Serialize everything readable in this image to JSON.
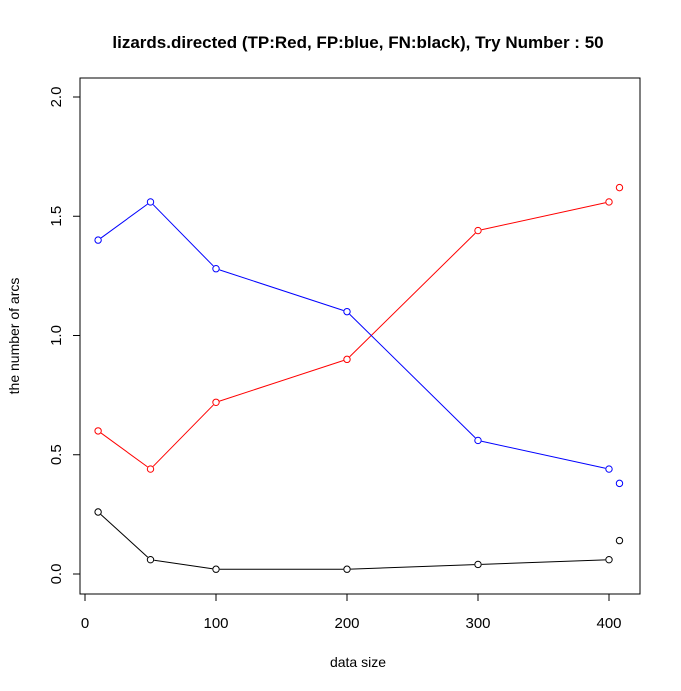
{
  "chart_data": {
    "type": "line",
    "title": "lizards.directed  (TP:Red, FP:blue, FN:black),  Try Number :  50",
    "xlabel": "data size",
    "ylabel": "the number of arcs",
    "xlim": [
      0,
      410
    ],
    "ylim": [
      0,
      2.0
    ],
    "x_ticks": [
      0,
      100,
      200,
      300,
      400
    ],
    "y_ticks": [
      0.0,
      0.5,
      1.0,
      1.5,
      2.0
    ],
    "x_tick_labels": [
      "0",
      "100",
      "200",
      "300",
      "400"
    ],
    "y_tick_labels": [
      "0.0",
      "0.5",
      "1.0",
      "1.5",
      "2.0"
    ],
    "x": [
      10,
      50,
      100,
      200,
      300,
      400
    ],
    "series": [
      {
        "name": "TP",
        "color": "#ff0000",
        "values": [
          0.6,
          0.44,
          0.72,
          0.9,
          1.44,
          1.56
        ],
        "extra_point": [
          408,
          1.62
        ]
      },
      {
        "name": "FP",
        "color": "#0000ff",
        "values": [
          1.4,
          1.56,
          1.28,
          1.1,
          0.56,
          0.44
        ],
        "extra_point": [
          408,
          0.38
        ]
      },
      {
        "name": "FN",
        "color": "#000000",
        "values": [
          0.26,
          0.06,
          0.02,
          0.02,
          0.04,
          0.06
        ],
        "extra_point": [
          408,
          0.14
        ]
      }
    ]
  }
}
